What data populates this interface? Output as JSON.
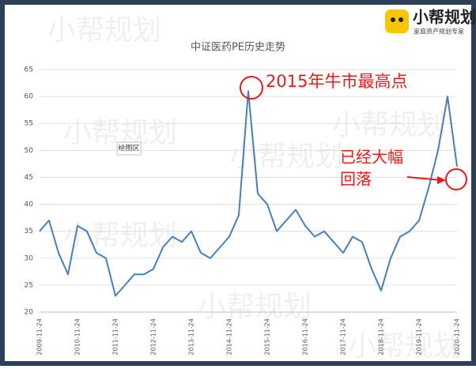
{
  "chart_data": {
    "type": "line",
    "title": "中证医药PE历史走势",
    "categories": [
      "2009-11-24",
      null,
      null,
      null,
      "2010-11-24",
      null,
      null,
      null,
      "2011-11-24",
      null,
      null,
      null,
      "2012-11-24",
      null,
      null,
      null,
      "2013-11-24",
      null,
      null,
      null,
      "2014-11-24",
      null,
      null,
      null,
      "2015-11-24",
      null,
      null,
      null,
      "2016-11-24",
      null,
      null,
      null,
      "2017-11-24",
      null,
      null,
      null,
      "2018-11-24",
      null,
      null,
      null,
      "2019-11-24",
      null,
      null,
      null,
      "2020-11-24"
    ],
    "values": [
      35,
      37,
      31,
      27,
      36,
      35,
      31,
      30,
      23,
      25,
      27,
      27,
      28,
      32,
      34,
      33,
      35,
      31,
      30,
      32,
      34,
      38,
      61,
      42,
      40,
      35,
      37,
      39,
      36,
      34,
      35,
      33,
      31,
      34,
      33,
      28,
      24,
      30,
      34,
      35,
      37,
      43,
      50,
      60,
      47
    ],
    "color": "#4a7ebb",
    "ylim": [
      20,
      65
    ],
    "yticks": [
      20,
      25,
      30,
      35,
      40,
      45,
      50,
      55,
      60,
      65
    ],
    "grid": true,
    "annotations": [
      "2015年牛市最高点",
      "已经大幅",
      "回落"
    ],
    "plot_label": "绘图区"
  },
  "brand": {
    "name": "小帮规划",
    "slogan": "家庭资产规划专家"
  }
}
